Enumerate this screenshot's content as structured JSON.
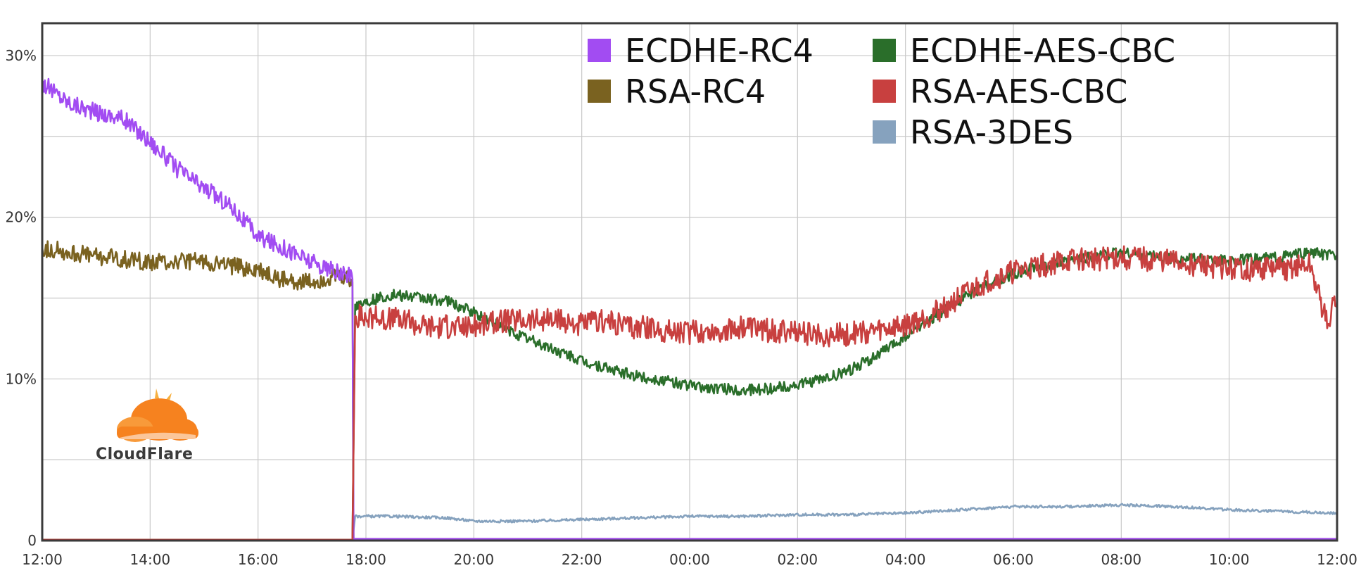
{
  "chart_data": {
    "type": "line",
    "title": "",
    "xlabel": "",
    "ylabel": "",
    "x_ticks": [
      "12:00",
      "14:00",
      "16:00",
      "18:00",
      "20:00",
      "22:00",
      "00:00",
      "02:00",
      "04:00",
      "06:00",
      "08:00",
      "10:00",
      "12:00"
    ],
    "y_ticks": [
      "0",
      "10%",
      "20%",
      "30%"
    ],
    "y_unit": "percent",
    "ylim": [
      0,
      32
    ],
    "x_range_hours": [
      0,
      24
    ],
    "grid": true,
    "legend_position": "top-right",
    "series": [
      {
        "name": "ECDHE-RC4",
        "color": "#a24cf2",
        "points": [
          [
            0,
            28.3
          ],
          [
            0.5,
            27.1
          ],
          [
            1.0,
            26.5
          ],
          [
            1.5,
            26.1
          ],
          [
            2.0,
            24.7
          ],
          [
            2.5,
            23.0
          ],
          [
            3.0,
            21.8
          ],
          [
            3.5,
            20.7
          ],
          [
            4.0,
            18.8
          ],
          [
            4.5,
            18.1
          ],
          [
            5.0,
            17.2
          ],
          [
            5.5,
            16.5
          ],
          [
            5.75,
            16.3
          ],
          [
            5.77,
            0.1
          ],
          [
            24,
            0.1
          ]
        ]
      },
      {
        "name": "RSA-RC4",
        "color": "#7a6220",
        "points": [
          [
            0,
            18.1
          ],
          [
            1.0,
            17.6
          ],
          [
            2.0,
            17.2
          ],
          [
            3.0,
            17.3
          ],
          [
            4.0,
            16.7
          ],
          [
            4.5,
            16.1
          ],
          [
            5.0,
            16.0
          ],
          [
            5.5,
            16.4
          ],
          [
            5.75,
            16.0
          ],
          [
            5.77,
            0.1
          ],
          [
            24,
            0.1
          ]
        ]
      },
      {
        "name": "ECDHE-AES-CBC",
        "color": "#2a6e2a",
        "points": [
          [
            0,
            0.05
          ],
          [
            5.75,
            0.05
          ],
          [
            5.8,
            14.6
          ],
          [
            6.5,
            15.2
          ],
          [
            7.5,
            14.8
          ],
          [
            8.0,
            14.1
          ],
          [
            8.5,
            13.2
          ],
          [
            9.0,
            12.5
          ],
          [
            9.5,
            11.8
          ],
          [
            10.0,
            11.1
          ],
          [
            10.5,
            10.6
          ],
          [
            11.0,
            10.2
          ],
          [
            11.5,
            9.9
          ],
          [
            12.0,
            9.6
          ],
          [
            12.5,
            9.4
          ],
          [
            13.0,
            9.3
          ],
          [
            13.5,
            9.4
          ],
          [
            14.0,
            9.6
          ],
          [
            14.5,
            10.0
          ],
          [
            15.0,
            10.6
          ],
          [
            15.5,
            11.5
          ],
          [
            16.0,
            12.6
          ],
          [
            16.5,
            13.8
          ],
          [
            17.0,
            14.8
          ],
          [
            17.5,
            15.8
          ],
          [
            18.0,
            16.5
          ],
          [
            18.5,
            17.0
          ],
          [
            19.0,
            17.2
          ],
          [
            19.5,
            17.6
          ],
          [
            20.0,
            17.8
          ],
          [
            20.5,
            17.6
          ],
          [
            21.0,
            17.4
          ],
          [
            21.5,
            17.4
          ],
          [
            22.0,
            17.3
          ],
          [
            22.5,
            17.4
          ],
          [
            23.0,
            17.6
          ],
          [
            23.5,
            17.8
          ],
          [
            24.0,
            17.6
          ]
        ]
      },
      {
        "name": "RSA-AES-CBC",
        "color": "#c8403f",
        "points": [
          [
            0,
            0.05
          ],
          [
            5.75,
            0.05
          ],
          [
            5.8,
            13.9
          ],
          [
            6.5,
            13.7
          ],
          [
            7.0,
            13.4
          ],
          [
            7.5,
            13.2
          ],
          [
            8.0,
            13.3
          ],
          [
            8.5,
            13.6
          ],
          [
            9.0,
            13.7
          ],
          [
            9.5,
            13.6
          ],
          [
            10.0,
            13.4
          ],
          [
            10.5,
            13.6
          ],
          [
            11.0,
            13.2
          ],
          [
            11.5,
            13.0
          ],
          [
            12.0,
            12.9
          ],
          [
            12.5,
            13.0
          ],
          [
            13.0,
            13.2
          ],
          [
            13.5,
            13.0
          ],
          [
            14.0,
            12.9
          ],
          [
            14.5,
            12.7
          ],
          [
            15.0,
            12.8
          ],
          [
            15.5,
            13.0
          ],
          [
            16.0,
            13.3
          ],
          [
            16.5,
            14.0
          ],
          [
            17.0,
            15.0
          ],
          [
            17.5,
            16.0
          ],
          [
            18.0,
            16.6
          ],
          [
            18.5,
            17.0
          ],
          [
            19.0,
            17.3
          ],
          [
            19.5,
            17.4
          ],
          [
            20.0,
            17.5
          ],
          [
            20.5,
            17.4
          ],
          [
            21.0,
            17.2
          ],
          [
            21.5,
            17.0
          ],
          [
            22.0,
            16.8
          ],
          [
            22.5,
            16.8
          ],
          [
            23.0,
            16.8
          ],
          [
            23.5,
            17.0
          ],
          [
            23.8,
            13.5
          ],
          [
            24.0,
            15.0
          ]
        ]
      },
      {
        "name": "RSA-3DES",
        "color": "#86a2be",
        "points": [
          [
            0,
            0.05
          ],
          [
            5.75,
            0.05
          ],
          [
            5.8,
            1.5
          ],
          [
            6.5,
            1.5
          ],
          [
            7.5,
            1.4
          ],
          [
            8.0,
            1.2
          ],
          [
            9.0,
            1.2
          ],
          [
            10.0,
            1.3
          ],
          [
            11.0,
            1.4
          ],
          [
            12.0,
            1.5
          ],
          [
            13.0,
            1.5
          ],
          [
            14.0,
            1.6
          ],
          [
            15.0,
            1.6
          ],
          [
            16.0,
            1.7
          ],
          [
            17.0,
            1.9
          ],
          [
            18.0,
            2.1
          ],
          [
            19.0,
            2.1
          ],
          [
            20.0,
            2.2
          ],
          [
            21.0,
            2.1
          ],
          [
            22.0,
            1.9
          ],
          [
            23.0,
            1.8
          ],
          [
            24.0,
            1.7
          ]
        ]
      }
    ]
  },
  "logo": {
    "text": "CloudFlare"
  }
}
